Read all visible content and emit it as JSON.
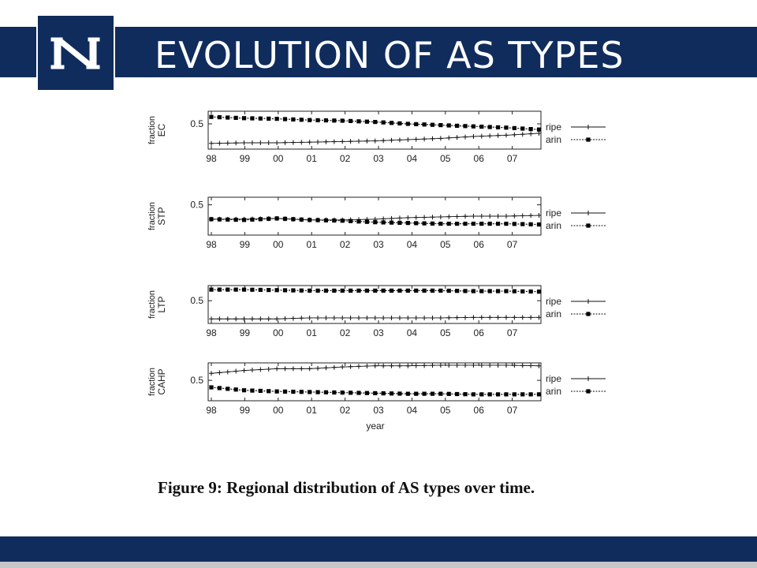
{
  "slide": {
    "title": "EVOLUTION OF AS TYPES",
    "logo_letter": "N",
    "caption": "Figure 9:  Regional distribution of AS types over time.",
    "colors": {
      "brand_navy": "#0f2c5c",
      "footer_strip": "#c6c6c6"
    }
  },
  "chart_data": [
    {
      "type": "line",
      "ylabel": [
        "fraction",
        "EC"
      ],
      "ytick": 0.5,
      "ylim": [
        0.1,
        0.7
      ],
      "xticks": [
        "98",
        "99",
        "00",
        "01",
        "02",
        "03",
        "04",
        "05",
        "06",
        "07"
      ],
      "x_start": 1998,
      "x_end": 2007.8,
      "series": [
        {
          "name": "ripe",
          "marker": "plus",
          "values": [
            0.19,
            0.2,
            0.2,
            0.21,
            0.22,
            0.23,
            0.25,
            0.27,
            0.3,
            0.32,
            0.35
          ]
        },
        {
          "name": "arin",
          "marker": "square",
          "values": [
            0.61,
            0.59,
            0.58,
            0.56,
            0.55,
            0.53,
            0.5,
            0.48,
            0.46,
            0.44,
            0.41
          ]
        }
      ]
    },
    {
      "type": "line",
      "ylabel": [
        "fraction",
        "STP"
      ],
      "ytick": 0.5,
      "ylim": [
        0.1,
        0.6
      ],
      "xticks": [
        "98",
        "99",
        "00",
        "01",
        "02",
        "03",
        "04",
        "05",
        "06",
        "07"
      ],
      "x_start": 1998,
      "x_end": 2007.8,
      "series": [
        {
          "name": "ripe",
          "marker": "plus",
          "values": [
            0.31,
            0.31,
            0.32,
            0.3,
            0.3,
            0.31,
            0.33,
            0.34,
            0.35,
            0.35,
            0.36
          ]
        },
        {
          "name": "arin",
          "marker": "square",
          "values": [
            0.31,
            0.3,
            0.32,
            0.3,
            0.29,
            0.27,
            0.26,
            0.25,
            0.25,
            0.25,
            0.24
          ]
        }
      ]
    },
    {
      "type": "line",
      "ylabel": [
        "fraction",
        "LTP"
      ],
      "ytick": 0.5,
      "ylim": [
        0.05,
        0.8
      ],
      "xticks": [
        "98",
        "99",
        "00",
        "01",
        "02",
        "03",
        "04",
        "05",
        "06",
        "07"
      ],
      "x_start": 1998,
      "x_end": 2007.8,
      "series": [
        {
          "name": "ripe",
          "marker": "plus",
          "values": [
            0.14,
            0.14,
            0.14,
            0.16,
            0.16,
            0.16,
            0.16,
            0.16,
            0.17,
            0.17,
            0.17
          ]
        },
        {
          "name": "arin",
          "marker": "square",
          "values": [
            0.72,
            0.72,
            0.71,
            0.7,
            0.7,
            0.7,
            0.7,
            0.7,
            0.69,
            0.69,
            0.68
          ]
        }
      ]
    },
    {
      "type": "line",
      "ylabel": [
        "fraction",
        "CAHP"
      ],
      "ytick": 0.5,
      "ylim": [
        0.15,
        0.8
      ],
      "xticks": [
        "98",
        "99",
        "00",
        "01",
        "02",
        "03",
        "04",
        "05",
        "06",
        "07"
      ],
      "x_start": 1998,
      "x_end": 2007.8,
      "xlabel": "year",
      "series": [
        {
          "name": "ripe",
          "marker": "plus",
          "values": [
            0.62,
            0.67,
            0.7,
            0.7,
            0.73,
            0.75,
            0.75,
            0.76,
            0.76,
            0.76,
            0.75
          ]
        },
        {
          "name": "arin",
          "marker": "square",
          "values": [
            0.38,
            0.33,
            0.31,
            0.3,
            0.29,
            0.28,
            0.27,
            0.27,
            0.26,
            0.26,
            0.26
          ]
        }
      ]
    }
  ]
}
